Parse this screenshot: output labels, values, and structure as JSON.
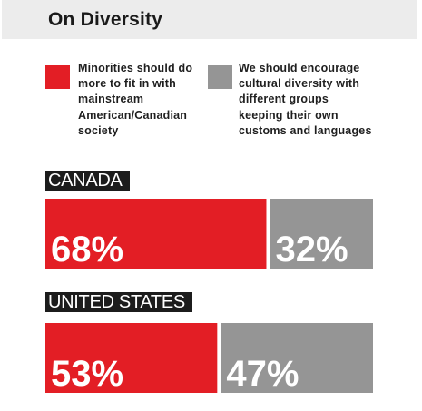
{
  "title": "On Diversity",
  "colors": {
    "minority": "#e31e25",
    "diversity": "#959595",
    "header_bg": "#ececec",
    "label_bg": "#1c1c1c"
  },
  "legend": [
    {
      "name": "Minorities should do more to fit in with mainstream American/Canadian society",
      "lines": [
        "Minorities should do",
        "more to fit in with",
        "mainstream",
        "American/Canadian",
        "society"
      ],
      "color": "#e31e25"
    },
    {
      "name": "We should encourage cultural diversity with different groups keeping their own customs and languages",
      "lines": [
        "We should encourage",
        "cultural diversity with",
        "different groups",
        "keeping their own",
        "customs and languages"
      ],
      "color": "#959595"
    }
  ],
  "chart_data": {
    "type": "bar",
    "orientation": "horizontal-stacked",
    "title": "On Diversity",
    "categories": [
      "CANADA",
      "UNITED STATES"
    ],
    "series": [
      {
        "name": "Minorities should do more to fit in with mainstream American/Canadian society",
        "values": [
          68,
          53
        ],
        "labels": [
          "68%",
          "53%"
        ],
        "color": "#e31e25"
      },
      {
        "name": "We should encourage cultural diversity with different groups keeping their own customs and languages",
        "values": [
          32,
          47
        ],
        "labels": [
          "32%",
          "47%"
        ],
        "color": "#959595"
      }
    ],
    "unit": "%",
    "xlim": [
      0,
      100
    ],
    "grid": false,
    "legend_position": "top"
  }
}
